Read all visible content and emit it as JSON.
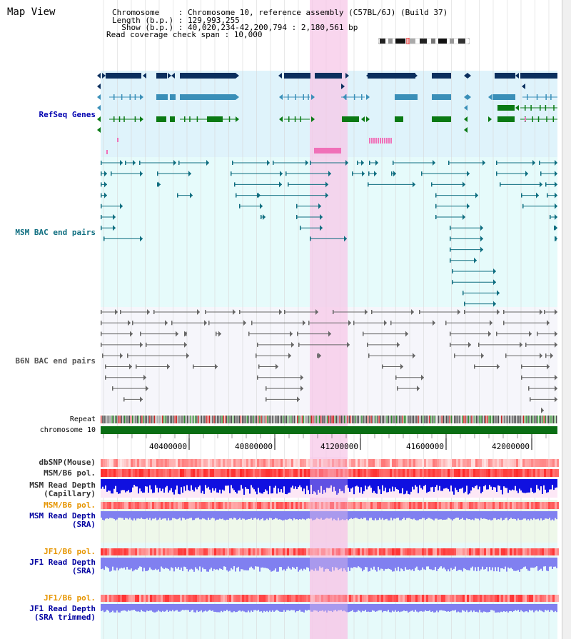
{
  "title": "Map View",
  "info": {
    "rows": [
      {
        "k": "Chromosome",
        "v": "Chromosome 10, reference assembly (C57BL/6J) (Build 37)"
      },
      {
        "k": "Length (b.p.)",
        "v": "129,993,255"
      },
      {
        "k": "Show (b.p.)",
        "v": "40,020,234-42,200,794 : 2,180,561 bp"
      },
      {
        "k": "Read coverage check span",
        "v": "10,000"
      }
    ],
    "line1": "Chromosome    : Chromosome 10, reference assembly (C57BL/6J) (Build 37)",
    "line2": "Length (b.p.) : 129,993,255",
    "line3": "  Show (b.p.) : 40,020,234-42,200,794 : 2,180,561 bp",
    "line4": "Read coverage check span : 10,000"
  },
  "tracks": {
    "refseq": "RefSeq Genes",
    "msm_bac": "MSM BAC end pairs",
    "b6n_bac": "B6N BAC end pairs",
    "repeat": "Repeat",
    "chromosome": "chromosome 10",
    "dbsnp": "dbSNP(Mouse)",
    "msm_b6_pol": "MSM/B6 pol.",
    "msm_depth_cap_1": "MSM Read Depth",
    "msm_depth_cap_2": "(Capillary)",
    "msm_b6_pol_sra": "MSM/B6 pol.",
    "msm_depth_sra_1": "MSM Read Depth",
    "msm_depth_sra_2": "(SRA)",
    "jf1_b6_pol": "JF1/B6 pol.",
    "jf1_depth_sra_1": "JF1 Read Depth",
    "jf1_depth_sra_2": "(SRA)",
    "jf1_b6_pol_2": "JF1/B6 pol.",
    "jf1_depth_trim_1": "JF1 Read Depth",
    "jf1_depth_trim_2": "(SRA trimmed)"
  },
  "axis": {
    "ticks": [
      "40400000",
      "40800000",
      "41200000",
      "41600000",
      "42000000"
    ]
  },
  "colors": {
    "refseq_bg": "#dff3fb",
    "msm_bg": "#e6fbfb",
    "b6n_bg": "#f6f6fb",
    "highlight": "#f7c8e8",
    "navy_gene": "#0b2f5e",
    "teal_gene": "#3a8fb8",
    "green_gene": "#0a7a14",
    "chrom_bar": "#0a6e14",
    "msm_pair": "#0f6e80",
    "b6n_pair": "#666666",
    "depth_dark": "#1010e0",
    "depth_light": "#8080f0",
    "pol_red": "#f03030"
  }
}
